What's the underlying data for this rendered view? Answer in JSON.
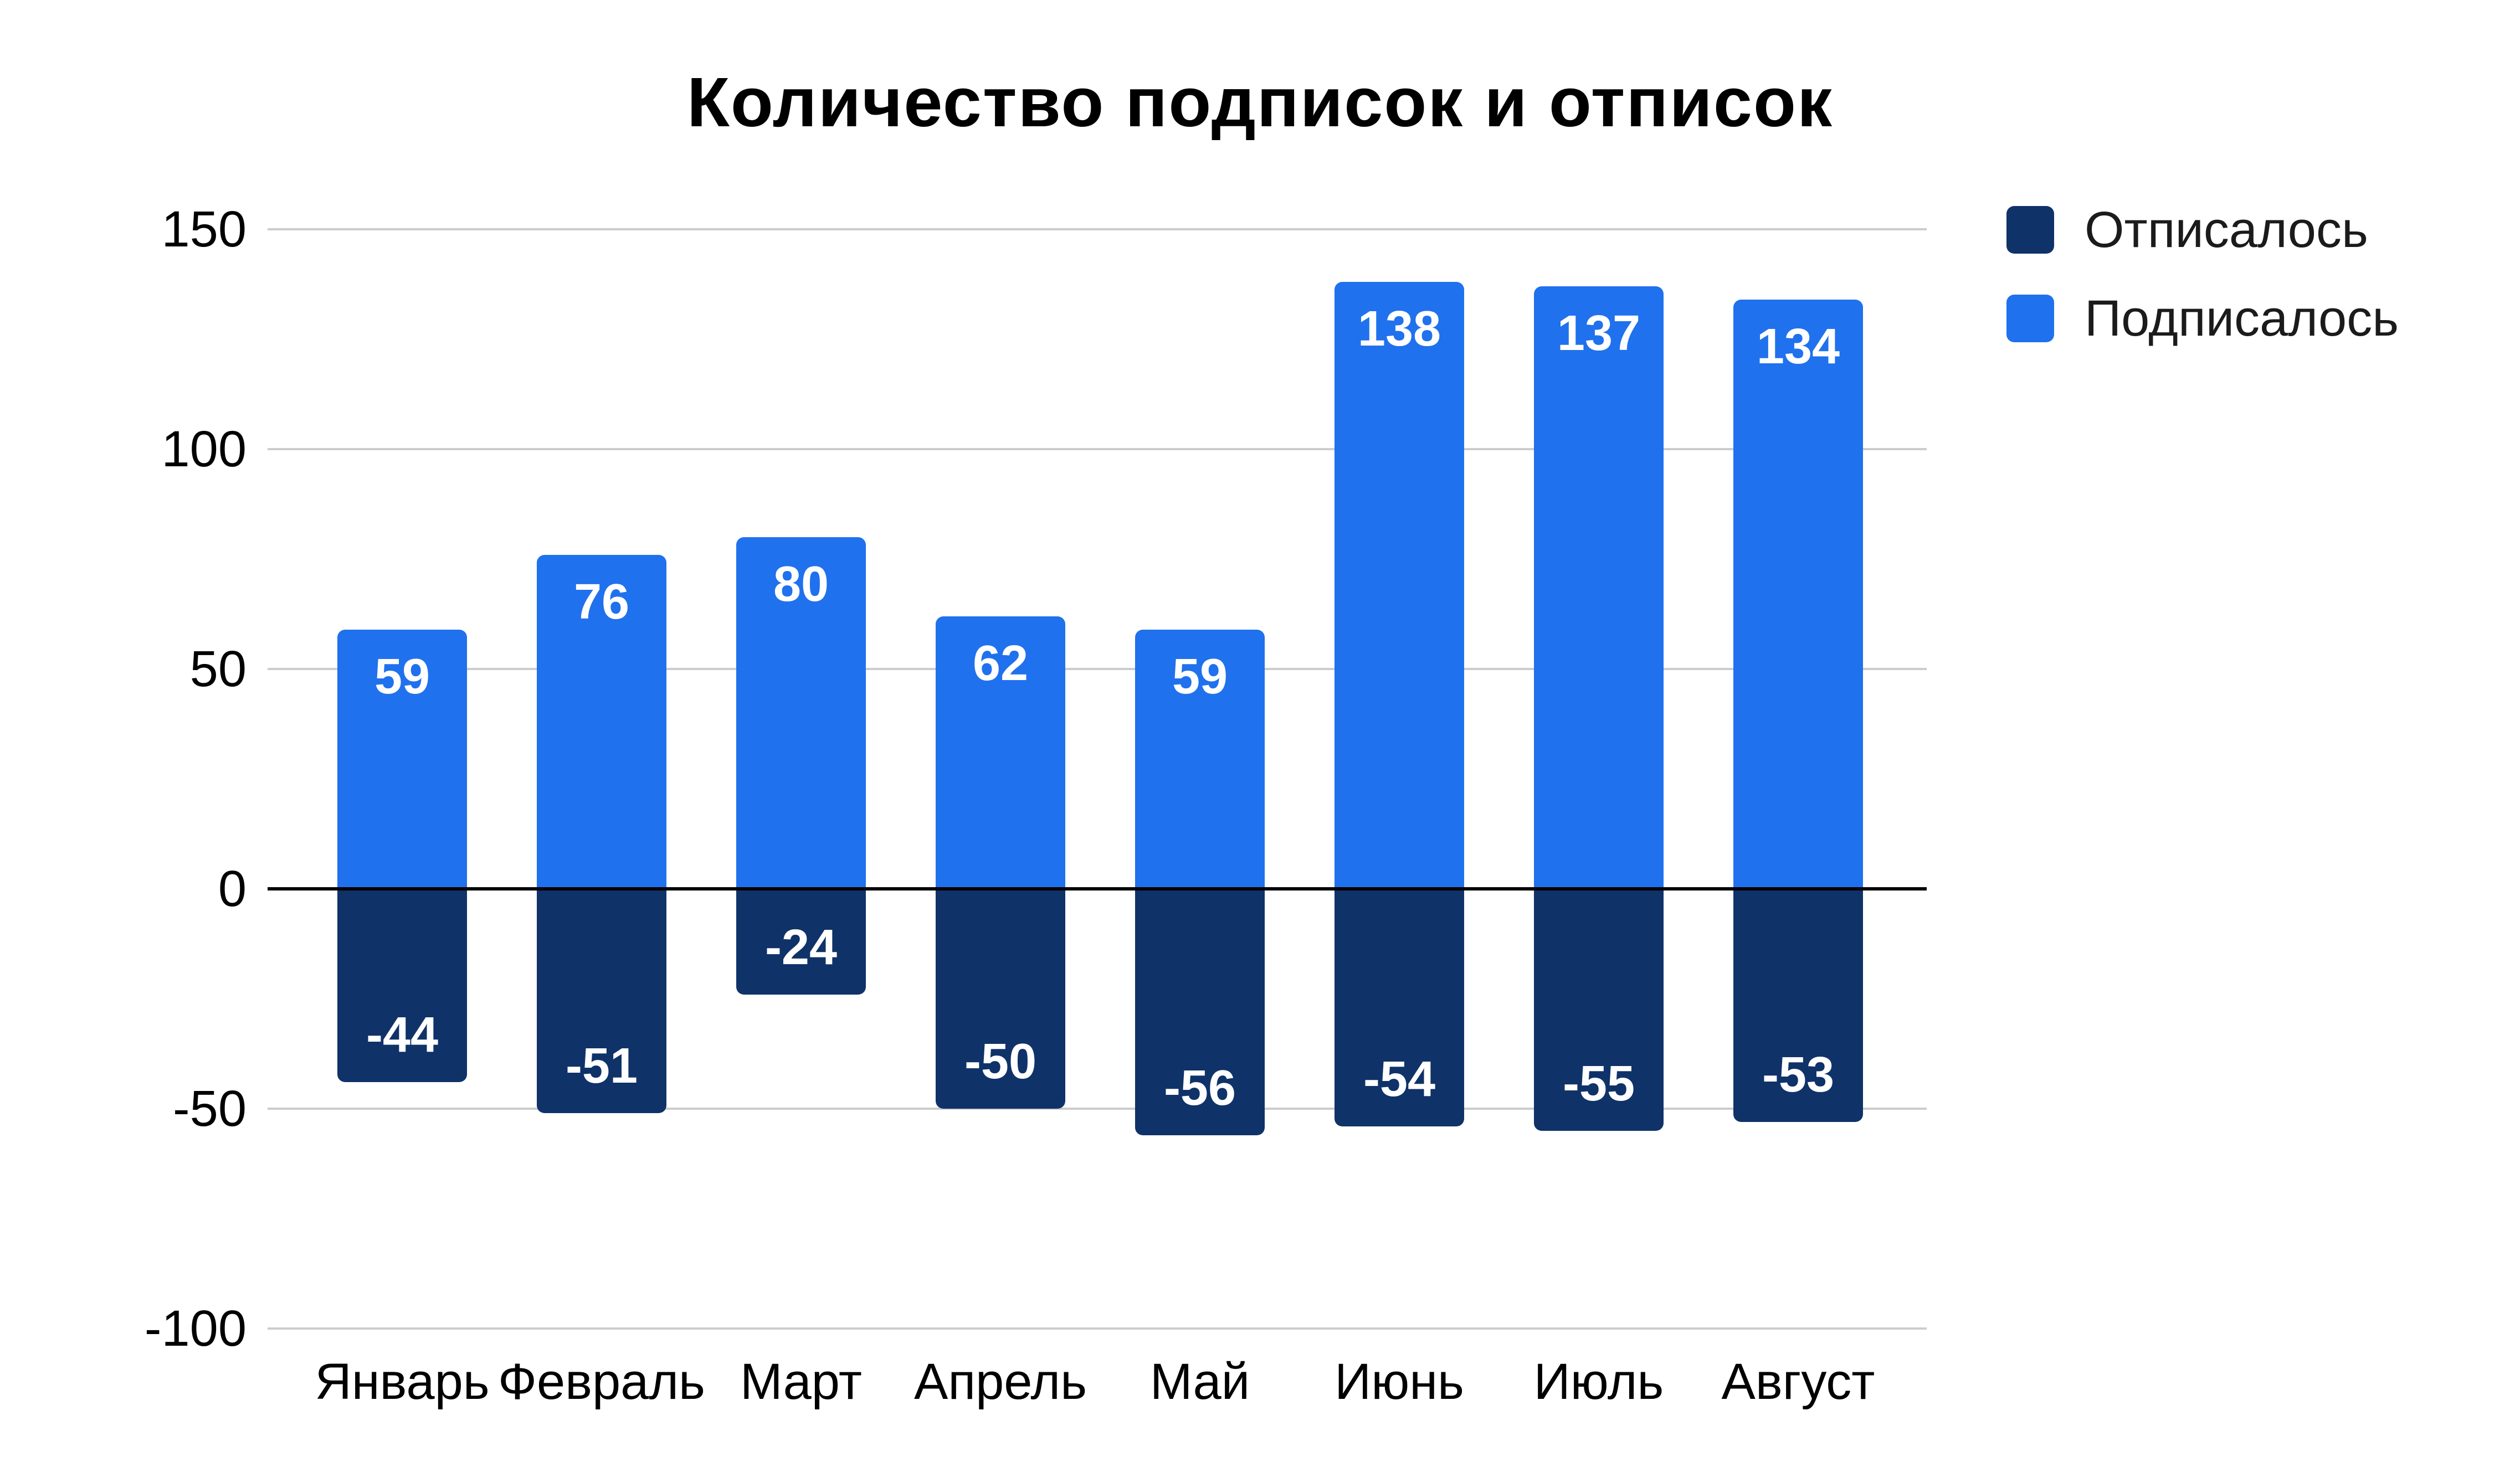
{
  "chart_data": {
    "type": "bar",
    "title": "Количество подписок и отписок",
    "categories": [
      "Январь",
      "Февраль",
      "Март",
      "Апрель",
      "Май",
      "Июнь",
      "Июль",
      "Август"
    ],
    "series": [
      {
        "name": "Отписалось",
        "color": "#0F3269",
        "values": [
          -44,
          -51,
          -24,
          -50,
          -56,
          -54,
          -55,
          -53
        ]
      },
      {
        "name": "Подписалось",
        "color": "#2071ED",
        "values": [
          59,
          76,
          80,
          62,
          59,
          138,
          137,
          134
        ]
      }
    ],
    "y_ticks": [
      150,
      100,
      50,
      0,
      -50,
      -100
    ],
    "ylim": [
      -100,
      150
    ],
    "xlabel": "",
    "ylabel": "",
    "grid": true,
    "zero_line": true,
    "legend_position": "top-right",
    "data_labels": "inside-end",
    "colors": {
      "background": "#FFFFFF",
      "gridline": "#CCCCCC",
      "zero_line": "#000000",
      "axis_text": "#000000",
      "title_text": "#000000",
      "bar_label_text": "#FFFFFF"
    }
  }
}
